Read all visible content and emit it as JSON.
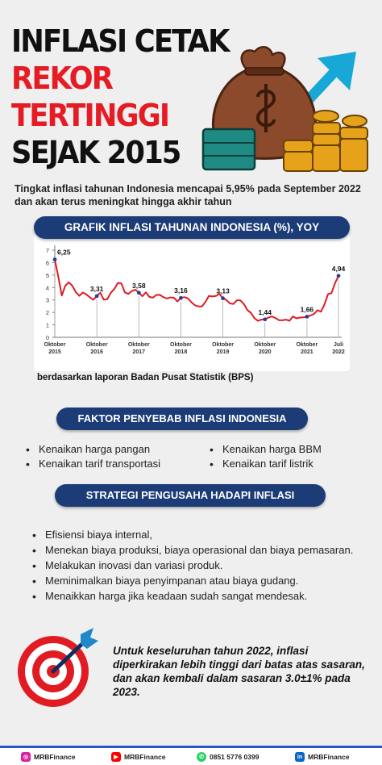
{
  "title": {
    "line1": "INFLASI CETAK",
    "line2": "REKOR",
    "line3": "TERTINGGI",
    "line4": "SEJAK 2015"
  },
  "hero_icons": [
    "money-bag-icon",
    "coin-stack-icon",
    "rising-arrow-icon"
  ],
  "intro": "Tingkat inflasi tahunan Indonesia mencapai 5,95% pada September 2022 dan akan terus meningkat hingga akhir tahun",
  "chart_data": {
    "type": "line",
    "title": "GRAFIK INFLASI TAHUNAN INDONESIA (%), YOY",
    "y_ticks": [
      "0",
      "1",
      "2",
      "3",
      "4",
      "5",
      "6",
      "7"
    ],
    "ylim": [
      0,
      7
    ],
    "x_ticks": [
      {
        "line1": "Oktober",
        "line2": "2015",
        "t": 0
      },
      {
        "line1": "Oktober",
        "line2": "2016",
        "t": 12
      },
      {
        "line1": "Oktober",
        "line2": "2017",
        "t": 24
      },
      {
        "line1": "Oktober",
        "line2": "2018",
        "t": 36
      },
      {
        "line1": "Oktober",
        "line2": "2019",
        "t": 48
      },
      {
        "line1": "Oktober",
        "line2": "2020",
        "t": 60
      },
      {
        "line1": "Oktober",
        "line2": "2021",
        "t": 72
      },
      {
        "line1": "Juli",
        "line2": "2022",
        "t": 81
      }
    ],
    "series": [
      {
        "color": "#e01b22",
        "values": [
          6.25,
          4.89,
          3.35,
          4.14,
          4.42,
          4.14,
          3.62,
          3.33,
          3.6,
          3.45,
          3.21,
          3.02,
          3.31,
          3.58,
          3.02,
          3.07,
          3.58,
          3.88,
          4.37,
          4.33,
          3.61,
          3.49,
          3.72,
          3.82,
          3.58,
          3.3,
          3.61,
          3.25,
          3.18,
          3.4,
          3.41,
          3.23,
          3.12,
          3.2,
          3.18,
          2.88,
          3.16,
          3.23,
          3.13,
          2.82,
          2.57,
          2.48,
          2.48,
          2.83,
          3.32,
          3.28,
          3.32,
          3.49,
          3.13,
          3.0,
          2.72,
          2.68,
          2.98,
          2.96,
          2.67,
          2.19,
          1.96,
          1.54,
          1.32,
          1.42,
          1.44,
          1.59,
          1.68,
          1.55,
          1.38,
          1.37,
          1.42,
          1.33,
          1.68,
          1.52,
          1.59,
          1.6,
          1.66,
          1.75,
          1.87,
          2.18,
          2.06,
          2.64,
          3.47,
          3.55,
          4.35,
          4.94
        ]
      }
    ],
    "annotations": [
      {
        "t": 0,
        "value": 6.25,
        "label": "6,25"
      },
      {
        "t": 12,
        "value": 3.31,
        "label": "3,31"
      },
      {
        "t": 24,
        "value": 3.58,
        "label": "3,58"
      },
      {
        "t": 36,
        "value": 3.16,
        "label": "3,16"
      },
      {
        "t": 48,
        "value": 3.13,
        "label": "3,13"
      },
      {
        "t": 60,
        "value": 1.44,
        "label": "1,44"
      },
      {
        "t": 72,
        "value": 1.66,
        "label": "1,66"
      },
      {
        "t": 81,
        "value": 4.94,
        "label": "4,94"
      }
    ],
    "grid": false
  },
  "source": "berdasarkan laporan Badan Pusat Statistik (BPS)",
  "factors": {
    "title": "FAKTOR PENYEBAB INFLASI INDONESIA",
    "left": [
      "Kenaikan harga pangan",
      "Kenaikan tarif transportasi"
    ],
    "right": [
      "Kenaikan harga BBM",
      "Kenaikan tarif listrik"
    ]
  },
  "strategy": {
    "title": "STRATEGI PENGUSAHA HADAPI INFLASI",
    "items": [
      "Efisiensi biaya internal,",
      "Menekan biaya produksi, biaya operasional dan biaya pemasaran.",
      "Melakukan inovasi dan variasi produk.",
      "Meminimalkan biaya penyimpanan atau biaya gudang.",
      "Menaikkan harga jika keadaan sudah sangat mendesak."
    ]
  },
  "closing": "Untuk keseluruhan tahun 2022, inflasi diperkirakan lebih tinggi dari batas atas sasaran, dan akan kembali dalam sasaran 3.0±1% pada 2023.",
  "footer": {
    "instagram": "MRBFinance",
    "youtube": "MRBFinance",
    "whatsapp": "0851 5776 0399",
    "linkedin": "MRBFinance",
    "colors": {
      "instagram": "#d6249f",
      "youtube": "#ff0000",
      "whatsapp": "#25d366",
      "linkedin": "#0a66c2"
    }
  }
}
